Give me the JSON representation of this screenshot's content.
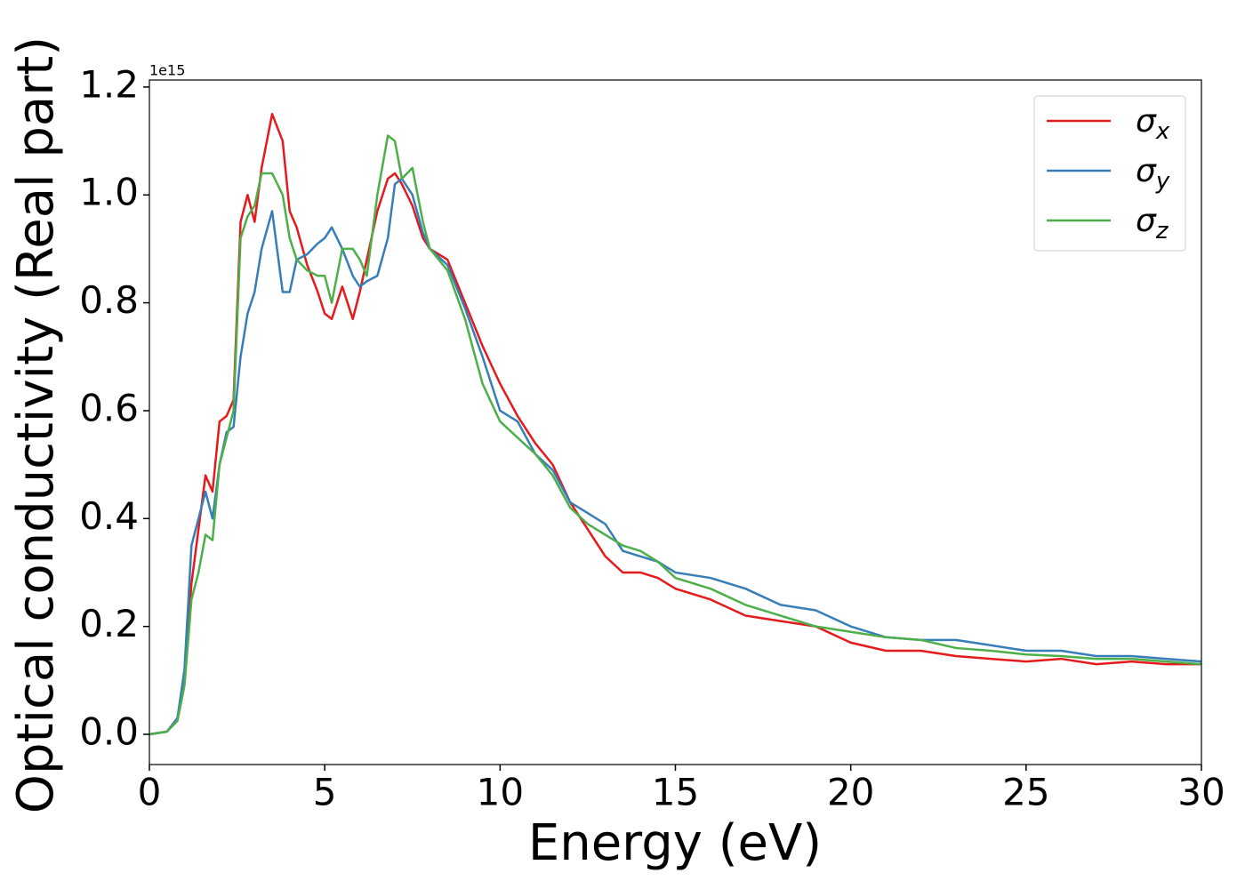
{
  "chart_data": {
    "type": "line",
    "x_label": "Energy (eV)",
    "y_label": "Optical conductivity (Real part)",
    "y_offset_text": "1e15",
    "x": [
      0,
      0.5,
      0.8,
      1.0,
      1.2,
      1.4,
      1.6,
      1.8,
      2.0,
      2.2,
      2.4,
      2.6,
      2.8,
      3.0,
      3.2,
      3.5,
      3.8,
      4.0,
      4.2,
      4.5,
      4.8,
      5.0,
      5.2,
      5.5,
      5.8,
      6.0,
      6.2,
      6.5,
      6.8,
      7.0,
      7.2,
      7.5,
      7.8,
      8.0,
      8.5,
      9.0,
      9.5,
      10,
      10.5,
      11,
      11.5,
      12,
      12.5,
      13,
      13.5,
      14,
      14.5,
      15,
      16,
      17,
      18,
      19,
      20,
      21,
      22,
      23,
      24,
      25,
      26,
      27,
      28,
      29,
      30
    ],
    "series": [
      {
        "name": "σx",
        "color": "#e41a1c",
        "values": [
          0,
          0.005,
          0.03,
          0.1,
          0.28,
          0.38,
          0.48,
          0.45,
          0.58,
          0.59,
          0.62,
          0.95,
          1.0,
          0.95,
          1.05,
          1.15,
          1.1,
          0.97,
          0.94,
          0.87,
          0.82,
          0.78,
          0.77,
          0.83,
          0.77,
          0.82,
          0.88,
          0.97,
          1.03,
          1.04,
          1.02,
          0.98,
          0.92,
          0.9,
          0.88,
          0.8,
          0.72,
          0.65,
          0.59,
          0.54,
          0.5,
          0.43,
          0.38,
          0.33,
          0.3,
          0.3,
          0.29,
          0.27,
          0.25,
          0.22,
          0.21,
          0.2,
          0.17,
          0.155,
          0.155,
          0.145,
          0.14,
          0.135,
          0.14,
          0.13,
          0.135,
          0.13,
          0.13
        ]
      },
      {
        "name": "σy",
        "color": "#377eb8",
        "values": [
          0,
          0.005,
          0.03,
          0.12,
          0.35,
          0.4,
          0.45,
          0.4,
          0.5,
          0.56,
          0.57,
          0.7,
          0.78,
          0.82,
          0.9,
          0.97,
          0.82,
          0.82,
          0.88,
          0.89,
          0.91,
          0.92,
          0.94,
          0.9,
          0.85,
          0.83,
          0.84,
          0.85,
          0.92,
          1.02,
          1.03,
          1.0,
          0.93,
          0.9,
          0.87,
          0.79,
          0.7,
          0.6,
          0.58,
          0.52,
          0.49,
          0.43,
          0.41,
          0.39,
          0.34,
          0.33,
          0.32,
          0.3,
          0.29,
          0.27,
          0.24,
          0.23,
          0.2,
          0.18,
          0.175,
          0.175,
          0.165,
          0.155,
          0.155,
          0.145,
          0.145,
          0.14,
          0.135
        ]
      },
      {
        "name": "σz",
        "color": "#4daf4a",
        "values": [
          0,
          0.005,
          0.025,
          0.09,
          0.25,
          0.3,
          0.37,
          0.36,
          0.5,
          0.55,
          0.6,
          0.92,
          0.96,
          0.98,
          1.04,
          1.04,
          1.0,
          0.92,
          0.88,
          0.86,
          0.85,
          0.85,
          0.8,
          0.9,
          0.9,
          0.88,
          0.85,
          1.0,
          1.11,
          1.1,
          1.03,
          1.05,
          0.95,
          0.9,
          0.86,
          0.77,
          0.65,
          0.58,
          0.55,
          0.52,
          0.48,
          0.42,
          0.39,
          0.37,
          0.35,
          0.34,
          0.32,
          0.29,
          0.27,
          0.24,
          0.22,
          0.2,
          0.19,
          0.18,
          0.175,
          0.16,
          0.155,
          0.148,
          0.145,
          0.14,
          0.14,
          0.135,
          0.13
        ]
      }
    ],
    "xlim": [
      0,
      30
    ],
    "xticks": [
      0,
      5,
      10,
      15,
      20,
      25,
      30
    ],
    "ylim": [
      -0.056,
      1.213
    ],
    "yticks": [
      {
        "value": 0,
        "label": "0.0"
      },
      0.2,
      0.4,
      0.6,
      0.8,
      {
        "value": 1,
        "label": "1.0"
      },
      1.2
    ],
    "legend": "upper right"
  }
}
